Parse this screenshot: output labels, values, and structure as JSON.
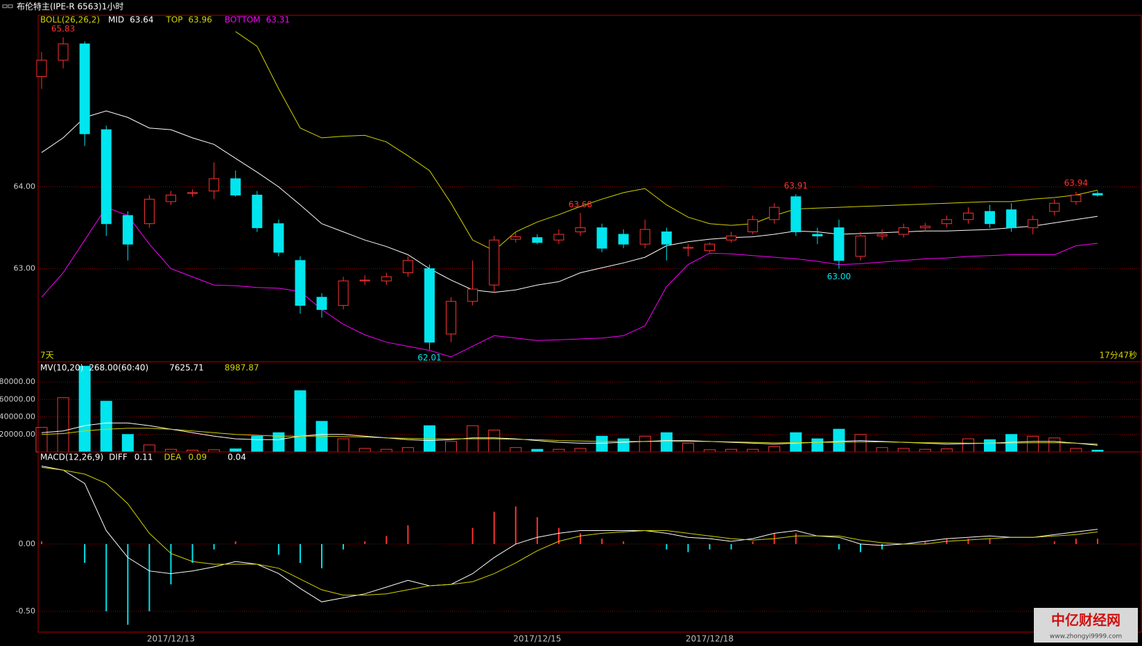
{
  "title": "布伦特主(IPE-R 6563)1小时",
  "watermark": {
    "title": "中亿财经网",
    "url": "www.zhongyi9999.com"
  },
  "chart_data": [
    {
      "type": "candlestick",
      "indicator": "BOLL(26,26,2)",
      "period_label": "7天",
      "countdown": "17分47秒",
      "categories": [
        null,
        null,
        null,
        null,
        null,
        null,
        "2017/12/13",
        null,
        null,
        null,
        null,
        null,
        null,
        null,
        null,
        null,
        null,
        null,
        null,
        null,
        null,
        null,
        null,
        "2017/12/15",
        null,
        null,
        null,
        null,
        null,
        null,
        null,
        "2017/12/18",
        null,
        null,
        null,
        null,
        null,
        null,
        null,
        null,
        null,
        null,
        null,
        null,
        null,
        null,
        null,
        null,
        null,
        null
      ],
      "open": [
        65.35,
        65.55,
        65.75,
        64.7,
        63.65,
        63.55,
        63.82,
        63.92,
        63.95,
        64.1,
        63.9,
        63.55,
        63.1,
        62.65,
        62.55,
        62.85,
        62.85,
        62.95,
        63.0,
        62.2,
        62.6,
        62.8,
        63.36,
        63.38,
        63.35,
        63.45,
        63.5,
        63.42,
        63.3,
        63.45,
        63.25,
        63.22,
        63.35,
        63.45,
        63.6,
        63.88,
        63.42,
        63.5,
        63.15,
        63.4,
        63.42,
        63.5,
        63.55,
        63.6,
        63.7,
        63.72,
        63.5,
        63.7,
        63.82,
        63.92
      ],
      "high": [
        65.65,
        65.83,
        65.78,
        64.75,
        63.7,
        63.9,
        63.95,
        63.97,
        64.3,
        64.2,
        63.95,
        63.6,
        63.15,
        62.7,
        62.9,
        62.92,
        62.95,
        63.15,
        63.05,
        62.65,
        63.1,
        63.4,
        63.45,
        63.42,
        63.48,
        63.68,
        63.55,
        63.48,
        63.6,
        63.5,
        63.3,
        63.32,
        63.45,
        63.65,
        63.8,
        63.91,
        63.5,
        63.6,
        63.45,
        63.48,
        63.55,
        63.56,
        63.65,
        63.75,
        63.78,
        63.8,
        63.65,
        63.85,
        63.94,
        63.95
      ],
      "low": [
        65.2,
        65.45,
        64.5,
        63.4,
        63.1,
        63.5,
        63.78,
        63.88,
        63.85,
        63.88,
        63.45,
        63.15,
        62.45,
        62.4,
        62.5,
        62.8,
        62.8,
        62.9,
        62.01,
        62.1,
        62.55,
        62.7,
        63.32,
        63.3,
        63.3,
        63.4,
        63.2,
        63.25,
        63.25,
        63.1,
        63.15,
        63.2,
        63.32,
        63.42,
        63.55,
        63.4,
        63.3,
        63.0,
        63.1,
        63.35,
        63.38,
        63.46,
        63.5,
        63.55,
        63.5,
        63.45,
        63.42,
        63.65,
        63.78,
        63.88
      ],
      "close": [
        65.55,
        65.75,
        64.65,
        63.55,
        63.3,
        63.85,
        63.9,
        63.93,
        64.1,
        63.9,
        63.5,
        63.2,
        62.55,
        62.5,
        62.85,
        62.86,
        62.9,
        63.1,
        62.1,
        62.6,
        62.75,
        63.35,
        63.39,
        63.32,
        63.42,
        63.5,
        63.25,
        63.3,
        63.48,
        63.3,
        63.26,
        63.3,
        63.4,
        63.6,
        63.75,
        63.45,
        63.4,
        63.1,
        63.4,
        63.42,
        63.5,
        63.52,
        63.6,
        63.68,
        63.55,
        63.5,
        63.6,
        63.8,
        63.9,
        63.9
      ],
      "up_color": "#ff3232",
      "down_color": "#00e5ee",
      "series": [
        {
          "name": "MID",
          "color": "#ffffff",
          "current": 63.64,
          "values": [
            64.42,
            64.6,
            64.85,
            64.93,
            64.85,
            64.72,
            64.7,
            64.6,
            64.52,
            64.35,
            64.18,
            64.0,
            63.78,
            63.55,
            63.45,
            63.35,
            63.27,
            63.17,
            63.0,
            62.86,
            62.74,
            62.71,
            62.74,
            62.8,
            62.84,
            62.95,
            63.01,
            63.07,
            63.14,
            63.28,
            63.33,
            63.36,
            63.38,
            63.39,
            63.42,
            63.46,
            63.45,
            63.42,
            63.43,
            63.44,
            63.45,
            63.46,
            63.46,
            63.47,
            63.48,
            63.5,
            63.52,
            63.56,
            63.6,
            63.64
          ]
        },
        {
          "name": "TOP",
          "color": "#d4d400",
          "current": 63.96,
          "values": [
            null,
            null,
            null,
            null,
            null,
            null,
            null,
            null,
            null,
            65.9,
            65.72,
            65.2,
            64.72,
            64.6,
            64.62,
            64.63,
            64.55,
            64.38,
            64.2,
            63.8,
            63.35,
            63.22,
            63.45,
            63.57,
            63.66,
            63.76,
            63.85,
            63.93,
            63.98,
            63.78,
            63.63,
            63.55,
            63.53,
            63.55,
            63.65,
            63.73,
            63.74,
            63.75,
            63.76,
            63.77,
            63.78,
            63.79,
            63.8,
            63.81,
            63.82,
            63.82,
            63.85,
            63.87,
            63.9,
            63.96
          ]
        },
        {
          "name": "BOTTOM",
          "color": "#ff00ff",
          "current": 63.31,
          "values": [
            62.65,
            62.95,
            63.35,
            63.75,
            63.65,
            63.3,
            63.0,
            62.9,
            62.8,
            62.79,
            62.77,
            62.76,
            62.72,
            62.5,
            62.32,
            62.19,
            62.1,
            62.05,
            62.0,
            61.92,
            62.05,
            62.18,
            62.15,
            62.12,
            62.13,
            62.14,
            62.15,
            62.18,
            62.3,
            62.78,
            63.05,
            63.19,
            63.18,
            63.16,
            63.14,
            63.12,
            63.09,
            63.05,
            63.06,
            63.08,
            63.1,
            63.12,
            63.13,
            63.15,
            63.16,
            63.17,
            63.17,
            63.17,
            63.28,
            63.31
          ]
        }
      ],
      "annotations": [
        {
          "candle": 1,
          "value": 65.83,
          "label": "65.83"
        },
        {
          "candle": 18,
          "value": 62.01,
          "label": "62.01"
        },
        {
          "candle": 25,
          "value": 63.68,
          "label": "63.68"
        },
        {
          "candle": 35,
          "value": 63.91,
          "label": "63.91"
        },
        {
          "candle": 37,
          "value": 63,
          "label": "63.00"
        },
        {
          "candle": 48,
          "value": 63.94,
          "label": "63.94"
        }
      ],
      "ylim": [
        61.86,
        66.1
      ],
      "yticks": [
        {
          "value": 63,
          "label": "63.00"
        },
        {
          "value": 64,
          "label": "64.00"
        }
      ],
      "grid": true
    },
    {
      "type": "volume",
      "indicator": "MV(10,20)",
      "volume_label": "268.00(60:40)",
      "values": [
        28000,
        62000,
        98000,
        58000,
        20000,
        8000,
        3000,
        2000,
        2500,
        3500,
        18000,
        22000,
        70000,
        35000,
        15000,
        4000,
        3000,
        5000,
        30000,
        12000,
        30000,
        25000,
        5000,
        3000,
        3000,
        4000,
        18000,
        15000,
        18000,
        22000,
        10000,
        2500,
        3000,
        3000,
        6000,
        22000,
        15000,
        26000,
        20000,
        5000,
        4000,
        3000,
        3500,
        15000,
        14000,
        20000,
        18000,
        16000,
        4000,
        2000
      ],
      "series": [
        {
          "color": "#ffffff",
          "current": 7625.71,
          "values": [
            22000,
            24000,
            30000,
            33000,
            33000,
            30000,
            26000,
            22000,
            18000,
            15000,
            14000,
            14000,
            18000,
            20000,
            20000,
            18000,
            16000,
            14000,
            13000,
            14000,
            16000,
            16000,
            15000,
            13000,
            11000,
            10000,
            10000,
            11000,
            12000,
            13000,
            13000,
            12000,
            11000,
            10000,
            9000,
            10000,
            11000,
            12000,
            13000,
            12000,
            11000,
            10000,
            9000,
            9500,
            10000,
            11000,
            12000,
            12000,
            10000,
            7625.71
          ]
        },
        {
          "color": "#d4d400",
          "current": 8987.87,
          "values": [
            20000,
            21000,
            24000,
            26000,
            27000,
            27000,
            26000,
            24000,
            22000,
            20000,
            19000,
            18000,
            18000,
            18000,
            17500,
            17000,
            16000,
            15500,
            15000,
            15000,
            15000,
            15000,
            14500,
            14000,
            13000,
            12500,
            12000,
            12000,
            12000,
            12000,
            12000,
            12000,
            11500,
            11000,
            10500,
            10500,
            11000,
            11000,
            11500,
            11500,
            11000,
            10500,
            10500,
            10000,
            10000,
            10000,
            10500,
            10500,
            10000,
            8987.87
          ]
        }
      ],
      "ylim": [
        0,
        103000
      ],
      "yticks": [
        {
          "value": 20000,
          "label": "20000.00"
        },
        {
          "value": 40000,
          "label": "40000.00"
        },
        {
          "value": 60000,
          "label": "60000.00"
        },
        {
          "value": 80000,
          "label": "80000.00"
        }
      ],
      "grid": true
    },
    {
      "type": "macd",
      "indicator": "MACD(12,26,9)",
      "histogram": {
        "current": 0.04,
        "values": [
          0.02,
          0.0,
          -0.14,
          -0.5,
          -0.6,
          -0.5,
          -0.3,
          -0.14,
          -0.04,
          0.02,
          0.0,
          -0.08,
          -0.14,
          -0.18,
          -0.04,
          0.02,
          0.06,
          0.14,
          0.0,
          0.0,
          0.12,
          0.24,
          0.28,
          0.2,
          0.12,
          0.08,
          0.04,
          0.02,
          0.0,
          -0.04,
          -0.06,
          -0.04,
          -0.04,
          0.02,
          0.08,
          0.08,
          0.0,
          -0.04,
          -0.06,
          -0.04,
          0.0,
          0.02,
          0.04,
          0.04,
          0.04,
          0.0,
          0.0,
          0.02,
          0.04,
          0.04
        ]
      },
      "series": [
        {
          "name": "DIFF",
          "color": "#ffffff",
          "current": 0.11,
          "values": [
            0.58,
            0.55,
            0.45,
            0.1,
            -0.1,
            -0.2,
            -0.22,
            -0.2,
            -0.17,
            -0.13,
            -0.15,
            -0.22,
            -0.33,
            -0.43,
            -0.4,
            -0.37,
            -0.32,
            -0.27,
            -0.31,
            -0.3,
            -0.22,
            -0.1,
            0.0,
            0.05,
            0.08,
            0.1,
            0.1,
            0.1,
            0.1,
            0.08,
            0.05,
            0.04,
            0.02,
            0.04,
            0.08,
            0.1,
            0.06,
            0.05,
            0.0,
            -0.01,
            0.0,
            0.02,
            0.04,
            0.05,
            0.06,
            0.05,
            0.05,
            0.07,
            0.09,
            0.11
          ]
        },
        {
          "name": "DEA",
          "color": "#d4d400",
          "current": 0.09,
          "values": [
            0.57,
            0.55,
            0.52,
            0.45,
            0.3,
            0.08,
            -0.07,
            -0.13,
            -0.15,
            -0.15,
            -0.15,
            -0.18,
            -0.26,
            -0.34,
            -0.38,
            -0.38,
            -0.37,
            -0.34,
            -0.31,
            -0.3,
            -0.28,
            -0.22,
            -0.14,
            -0.05,
            0.02,
            0.06,
            0.08,
            0.09,
            0.1,
            0.1,
            0.08,
            0.06,
            0.04,
            0.03,
            0.04,
            0.06,
            0.06,
            0.06,
            0.03,
            0.01,
            0.0,
            0.0,
            0.02,
            0.03,
            0.04,
            0.05,
            0.05,
            0.06,
            0.07,
            0.09
          ]
        }
      ],
      "ylim": [
        -0.655,
        0.685
      ],
      "yticks": [
        {
          "value": 0,
          "label": "0.00"
        },
        {
          "value": -0.5,
          "label": "-0.50"
        }
      ],
      "grid": true
    }
  ]
}
